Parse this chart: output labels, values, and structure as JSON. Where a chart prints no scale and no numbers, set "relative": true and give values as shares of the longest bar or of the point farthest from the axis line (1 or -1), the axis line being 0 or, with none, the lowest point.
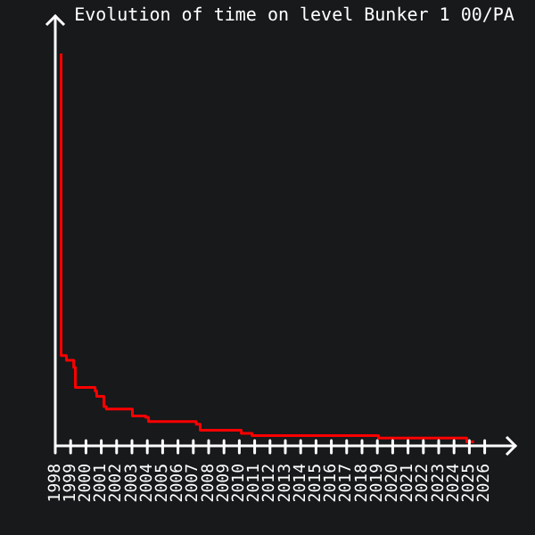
{
  "chart_data": {
    "type": "step",
    "title": "Evolution of time on level Bunker 1 00/PA",
    "relative": true,
    "color": "#ff0000",
    "marker": "none",
    "legend": false,
    "x": [
      1998.38,
      1998.38,
      1998.73,
      1999.2,
      1999.31,
      2000.6,
      2000.7,
      2001.17,
      2001.33,
      2003.03,
      2003.9,
      2004.08,
      2007.19,
      2007.45,
      2010.13,
      2010.83,
      2019.08,
      2024.83,
      2025.3
    ],
    "values": [
      1,
      0.23,
      0.218,
      0.2,
      0.149,
      0.14,
      0.126,
      0.1,
      0.094,
      0.076,
      0.073,
      0.062,
      0.055,
      0.04,
      0.032,
      0.026,
      0.02,
      0.01,
      0.01
    ],
    "xlim": [
      1998,
      2028
    ],
    "xticks": [
      1998,
      1999,
      2000,
      2001,
      2002,
      2003,
      2004,
      2005,
      2006,
      2007,
      2008,
      2009,
      2010,
      2011,
      2012,
      2013,
      2014,
      2015,
      2016,
      2017,
      2018,
      2019,
      2020,
      2021,
      2022,
      2023,
      2024,
      2025,
      2026
    ]
  }
}
